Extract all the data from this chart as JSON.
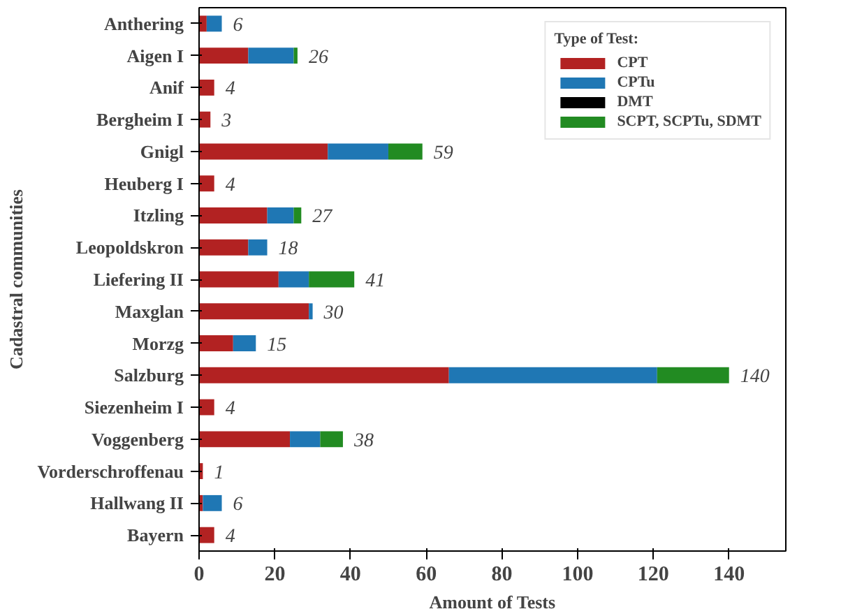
{
  "chart_data": {
    "type": "bar",
    "orientation": "horizontal",
    "stacked": true,
    "xlabel": "Amount of Tests",
    "ylabel": "Cadastral communities",
    "legend_title": "Type of Test:",
    "categories": [
      "Anthering",
      "Aigen I",
      "Anif",
      "Bergheim I",
      "Gnigl",
      "Heuberg I",
      "Itzling",
      "Leopoldskron",
      "Liefering II",
      "Maxglan",
      "Morzg",
      "Salzburg",
      "Siezenheim I",
      "Voggenberg",
      "Vorderschroffenau",
      "Hallwang II",
      "Bayern"
    ],
    "series": [
      {
        "name": "CPT",
        "color": "#b22222",
        "values": [
          2,
          13,
          4,
          3,
          34,
          4,
          18,
          13,
          21,
          29,
          9,
          66,
          4,
          24,
          1,
          1,
          4
        ]
      },
      {
        "name": "CPTu",
        "color": "#1f77b4",
        "values": [
          4,
          12,
          0,
          0,
          16,
          0,
          7,
          5,
          8,
          1,
          6,
          55,
          0,
          8,
          0,
          5,
          0
        ]
      },
      {
        "name": "DMT",
        "color": "#000000",
        "values": [
          0,
          0,
          0,
          0,
          0,
          0,
          0,
          0,
          0,
          0,
          0,
          0,
          0,
          0,
          0,
          0,
          0
        ]
      },
      {
        "name": "SCPT, SCPTu, SDMT",
        "color": "#228b22",
        "values": [
          0,
          1,
          0,
          0,
          9,
          0,
          2,
          0,
          12,
          0,
          0,
          19,
          0,
          6,
          0,
          0,
          0
        ]
      }
    ],
    "totals": [
      "6",
      "26",
      "4",
      "3",
      "59",
      "4",
      "27",
      "18",
      "41",
      "30",
      "15",
      "140",
      "4",
      "38",
      "1",
      "6",
      "4"
    ],
    "xlim": [
      0,
      155
    ],
    "xticks": [
      0,
      20,
      40,
      60,
      80,
      100,
      120,
      140
    ],
    "grid": false,
    "legend": "top right"
  }
}
